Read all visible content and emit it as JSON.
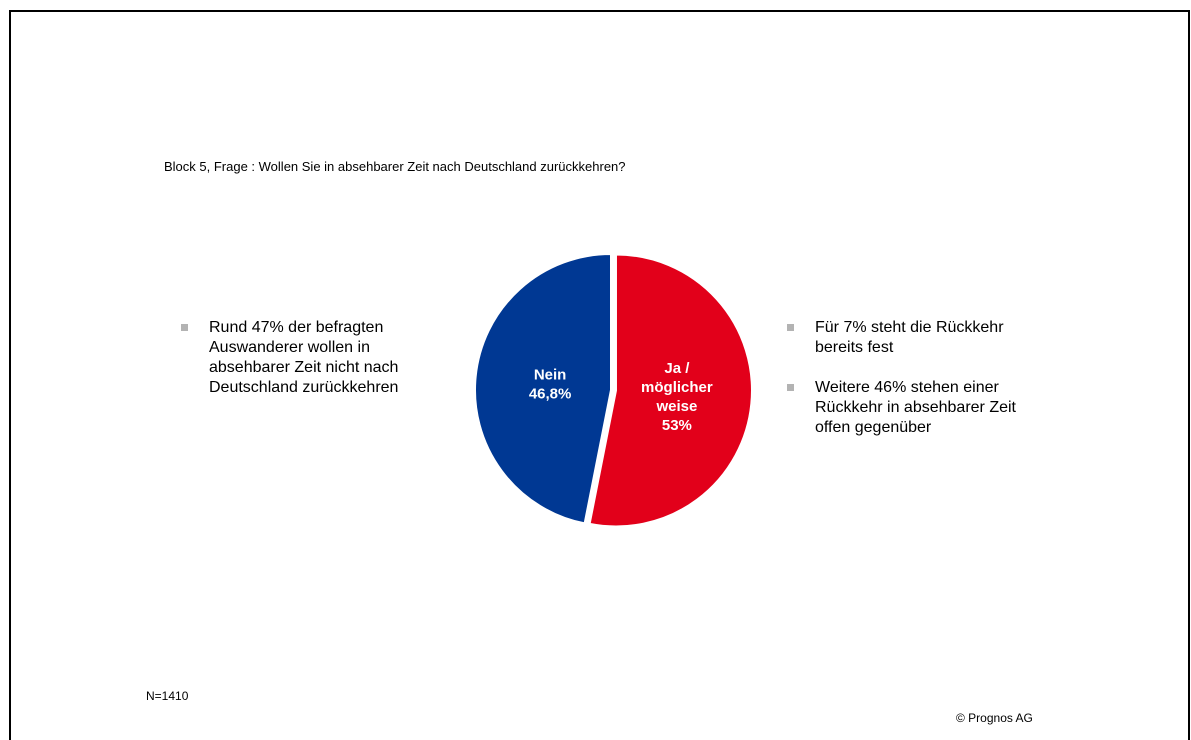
{
  "question": "Block 5, Frage : Wollen Sie in absehbarer Zeit nach Deutschland zurückkehren?",
  "left_bullets": [
    "Rund 47% der befragten Auswanderer wollen in absehbarer Zeit nicht nach Deutschland zurückkehren"
  ],
  "right_bullets": [
    "Für 7% steht die Rückkehr bereits fest",
    "Weitere 46% stehen einer Rückkehr in absehbarer Zeit offen gegenüber"
  ],
  "footer": {
    "sample": "N=1410",
    "copyright": "© Prognos AG"
  },
  "colors": {
    "nein": "#003893",
    "ja": "#e2001a",
    "bullet": "#b3b3b3"
  },
  "chart_data": {
    "type": "pie",
    "start_angle_deg": 0,
    "direction": "clockwise",
    "slices": [
      {
        "label_lines": [
          "Ja /",
          "möglicher",
          "weise",
          "53%"
        ],
        "value": 53.0,
        "color": "#e2001a",
        "exploded": true
      },
      {
        "label_lines": [
          "Nein",
          "46,8%"
        ],
        "value": 46.8,
        "color": "#003893",
        "exploded": false
      }
    ]
  }
}
